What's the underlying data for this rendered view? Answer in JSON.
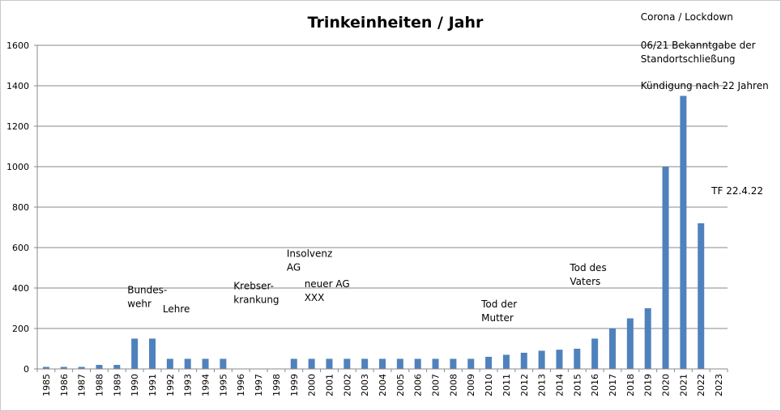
{
  "chart_data": {
    "type": "bar",
    "title": "Trinkeinheiten / Jahr",
    "xlabel": "",
    "ylabel": "",
    "ylim": [
      0,
      1600
    ],
    "yticks": [
      0,
      200,
      400,
      600,
      800,
      1000,
      1200,
      1400,
      1600
    ],
    "grid": "horizontal",
    "legend": "none",
    "bar_color": "#4f81bd",
    "categories": [
      "1985",
      "1986",
      "1987",
      "1988",
      "1989",
      "1990",
      "1991",
      "1992",
      "1993",
      "1994",
      "1995",
      "1996",
      "1997",
      "1998",
      "1999",
      "2000",
      "2001",
      "2002",
      "2003",
      "2004",
      "2005",
      "2006",
      "2007",
      "2008",
      "2009",
      "2010",
      "2011",
      "2012",
      "2013",
      "2014",
      "2015",
      "2016",
      "2017",
      "2018",
      "2019",
      "2020",
      "2021",
      "2022",
      "2023"
    ],
    "values": [
      10,
      10,
      10,
      20,
      20,
      150,
      150,
      50,
      50,
      50,
      50,
      0,
      0,
      0,
      50,
      50,
      50,
      50,
      50,
      50,
      50,
      50,
      50,
      50,
      50,
      60,
      70,
      80,
      90,
      95,
      100,
      150,
      200,
      250,
      300,
      1000,
      1350,
      720,
      0
    ],
    "annotations": [
      {
        "lines": [
          "Bundes-",
          "wehr"
        ],
        "category": "1990",
        "value": 375
      },
      {
        "lines": [
          "Lehre"
        ],
        "category": "1992",
        "value": 280
      },
      {
        "lines": [
          "Krebser-",
          "krankung"
        ],
        "category": "1996",
        "value": 395
      },
      {
        "lines": [
          "Insolvenz",
          "AG"
        ],
        "category": "1999",
        "value": 555
      },
      {
        "lines": [
          "neuer  AG",
          "XXX"
        ],
        "category": "2000",
        "value": 405
      },
      {
        "lines": [
          "Tod der",
          "Mutter"
        ],
        "category": "2010",
        "value": 305
      },
      {
        "lines": [
          "Tod des",
          "Vaters"
        ],
        "category": "2015",
        "value": 485
      },
      {
        "lines": [
          "Corona / Lockdown"
        ],
        "category": "2019",
        "value": 1725
      },
      {
        "lines": [
          "06/21  Bekanntgabe der",
          "Standortschließung"
        ],
        "category": "2019",
        "value": 1585
      },
      {
        "lines": [
          "Kündigung nach 22 Jahren"
        ],
        "category": "2019",
        "value": 1385
      },
      {
        "lines": [
          "TF 22.4.22"
        ],
        "category": "2023",
        "value": 865
      }
    ]
  }
}
